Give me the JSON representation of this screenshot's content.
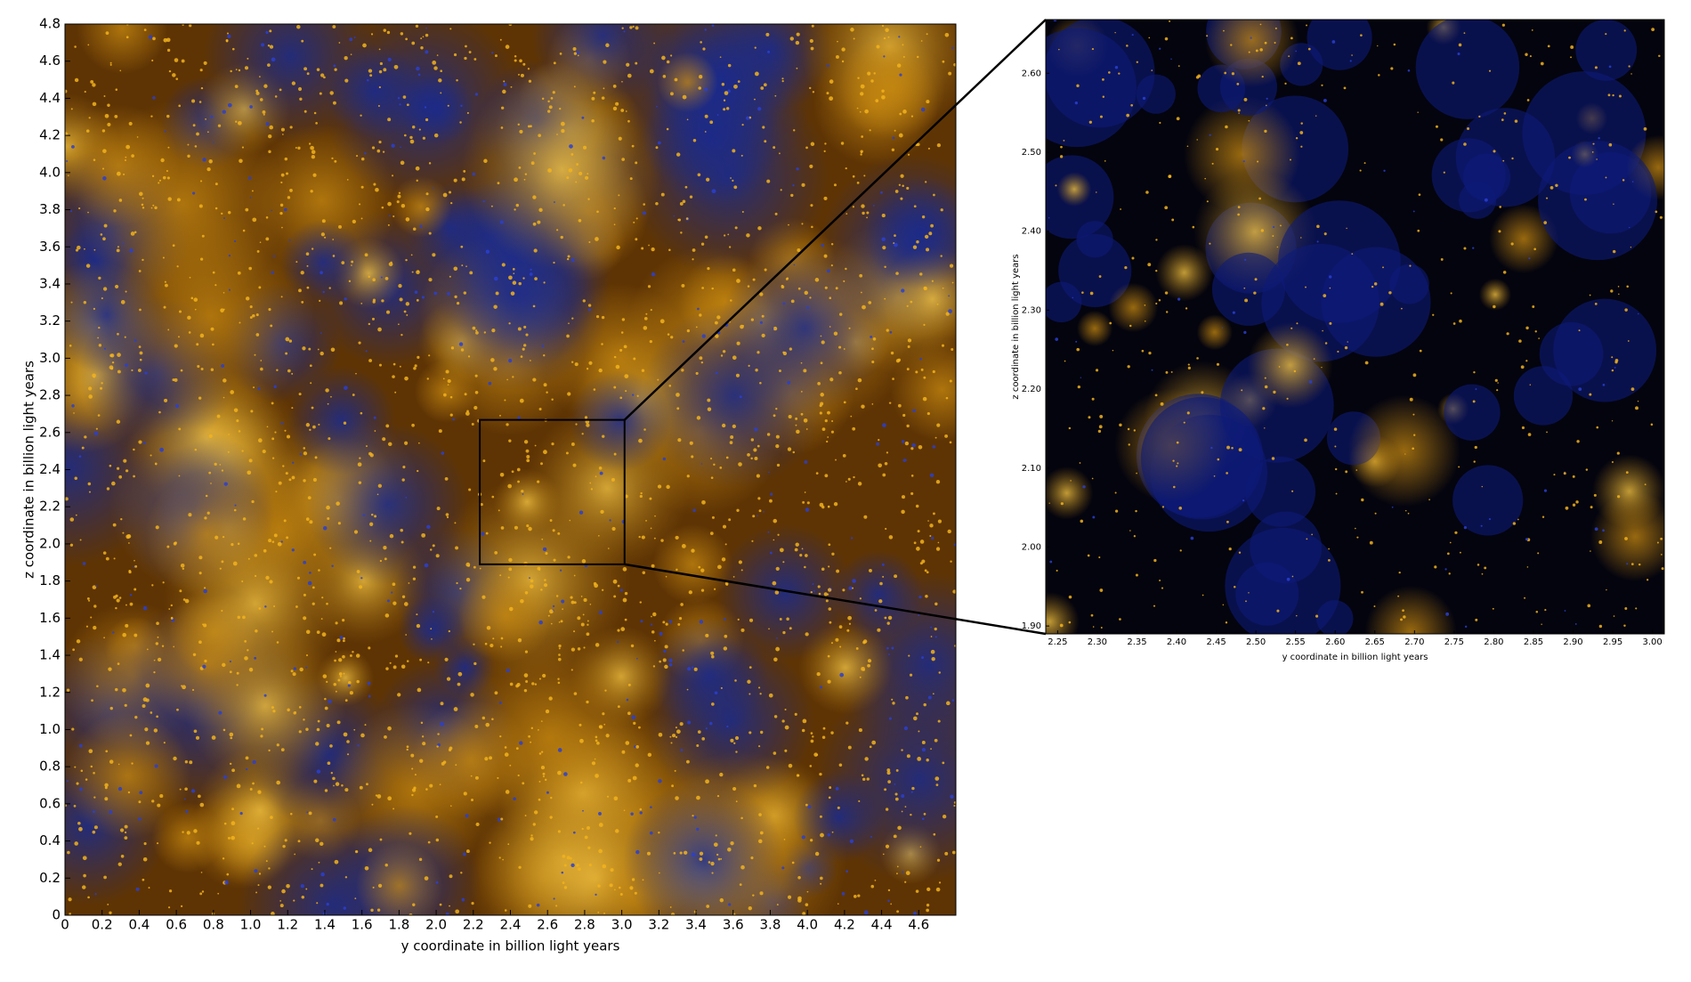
{
  "chart_data": [
    {
      "type": "image",
      "xlabel": "y coordinate in billion light years",
      "ylabel": "z coordinate in billion light years",
      "xlim": [
        0,
        4.8
      ],
      "ylim": [
        0,
        4.8
      ],
      "xticks": [
        0,
        0.2,
        0.4,
        0.6,
        0.8,
        {
          "value": 1,
          "label": "1.0"
        },
        1.2,
        1.4,
        1.6,
        1.8,
        {
          "value": 2,
          "label": "2.0"
        },
        2.2,
        2.4,
        2.6,
        2.8,
        {
          "value": 3,
          "label": "3.0"
        },
        3.2,
        3.4,
        3.6,
        3.8,
        {
          "value": 4,
          "label": "4.0"
        },
        4.2,
        4.4,
        4.6
      ],
      "yticks": [
        0,
        0.2,
        0.4,
        0.6,
        0.8,
        {
          "value": 1,
          "label": "1.0"
        },
        1.2,
        1.4,
        1.6,
        1.8,
        {
          "value": 2,
          "label": "2.0"
        },
        2.2,
        2.4,
        2.6,
        2.8,
        {
          "value": 3,
          "label": "3.0"
        },
        3.2,
        3.4,
        3.6,
        3.8,
        {
          "value": 4,
          "label": "4.0"
        },
        4.2,
        4.4,
        4.6,
        4.8
      ]
    },
    {
      "type": "image",
      "xlabel": "y coordinate in billion light years",
      "ylabel": "z coordinate in billion light years",
      "xlim": [
        2.235,
        3.015
      ],
      "ylim": [
        1.89,
        2.668
      ],
      "xticks": [
        2.25,
        {
          "value": 2.3,
          "label": "2.30"
        },
        2.35,
        {
          "value": 2.4,
          "label": "2.40"
        },
        2.45,
        {
          "value": 2.5,
          "label": "2.50"
        },
        2.55,
        {
          "value": 2.6,
          "label": "2.60"
        },
        2.65,
        {
          "value": 2.7,
          "label": "2.70"
        },
        2.75,
        {
          "value": 2.8,
          "label": "2.80"
        },
        2.85,
        {
          "value": 2.9,
          "label": "2.90"
        },
        2.95,
        {
          "value": 3,
          "label": "3.00"
        }
      ],
      "yticks": [
        {
          "value": 1.9,
          "label": "1.90"
        },
        {
          "value": 2,
          "label": "2.00"
        },
        {
          "value": 2.1,
          "label": "2.10"
        },
        {
          "value": 2.2,
          "label": "2.20"
        },
        {
          "value": 2.3,
          "label": "2.30"
        },
        {
          "value": 2.4,
          "label": "2.40"
        },
        {
          "value": 2.5,
          "label": "2.50"
        },
        {
          "value": 2.6,
          "label": "2.60"
        }
      ]
    }
  ]
}
